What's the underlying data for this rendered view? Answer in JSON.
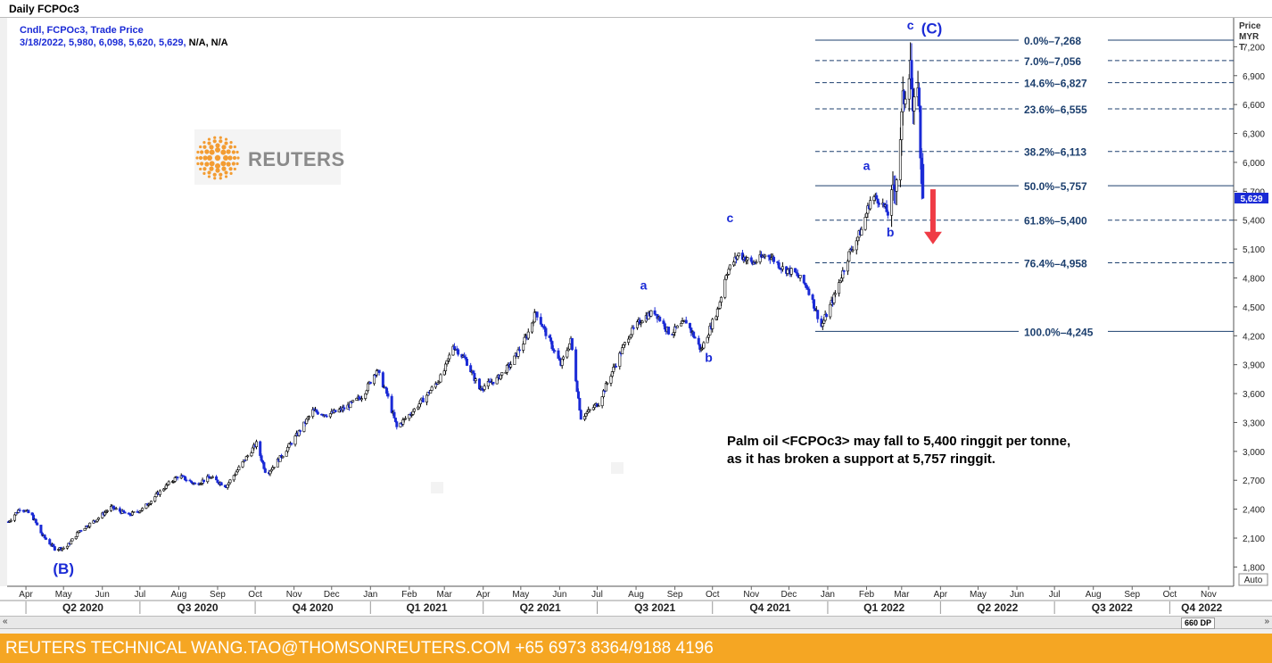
{
  "window_title": "Daily FCPOc3",
  "legend": {
    "line1": "Cndl, FCPOc3, Trade Price",
    "line2_blue": "3/18/2022, 5,980, 6,098, 5,620, 5,629,",
    "line2_black": " N/A, N/A"
  },
  "logo_text": "REUTERS",
  "note": {
    "line1": "Palm oil <FCPOc3> may fall to 5,400 ringgit per tonne,",
    "line2": "as it has broken a support at 5,757 ringgit."
  },
  "footer_text": "REUTERS TECHNICAL  WANG.TAO@THOMSONREUTERS.COM  +65 6973 8364/9188 4196",
  "scroll": {
    "left": "«",
    "right": "»",
    "dp_label": "660 DP"
  },
  "axis": {
    "price_header": [
      "Price",
      "MYR",
      "T"
    ],
    "auto_label": "Auto",
    "last_price_label": "5,629"
  },
  "colors": {
    "up_candle": "#000000",
    "down_candle": "#1b2bd6",
    "wave_label": "#1b2bd6",
    "fib_text": "#1c3f6e",
    "arrow": "#ef3b45",
    "footer": "#f5a623",
    "last_price_box": "#1b2bd6"
  },
  "chart_data": {
    "type": "candlestick",
    "ylabel": "Price MYR T",
    "ylim": [
      1600,
      7500
    ],
    "yticks": [
      "1,800",
      "2,100",
      "2,400",
      "2,700",
      "3,000",
      "3,300",
      "3,600",
      "3,900",
      "4,200",
      "4,500",
      "4,800",
      "5,100",
      "5,400",
      "5,700",
      "6,000",
      "6,300",
      "6,600",
      "6,900",
      "7,200"
    ],
    "ytick_values": [
      1800,
      2100,
      2400,
      2700,
      3000,
      3300,
      3600,
      3900,
      4200,
      4500,
      4800,
      5100,
      5400,
      5700,
      6000,
      6300,
      6600,
      6900,
      7200
    ],
    "xlim": [
      "2020-03-17",
      "2022-11-21"
    ],
    "months": [
      {
        "label": "Apr",
        "date": "2020-04-01"
      },
      {
        "label": "May",
        "date": "2020-05-01"
      },
      {
        "label": "Jun",
        "date": "2020-06-01"
      },
      {
        "label": "Jul",
        "date": "2020-07-01"
      },
      {
        "label": "Aug",
        "date": "2020-08-01"
      },
      {
        "label": "Sep",
        "date": "2020-09-01"
      },
      {
        "label": "Oct",
        "date": "2020-10-01"
      },
      {
        "label": "Nov",
        "date": "2020-11-01"
      },
      {
        "label": "Dec",
        "date": "2020-12-01"
      },
      {
        "label": "Jan",
        "date": "2021-01-01"
      },
      {
        "label": "Feb",
        "date": "2021-02-01"
      },
      {
        "label": "Mar",
        "date": "2021-03-01"
      },
      {
        "label": "Apr",
        "date": "2021-04-01"
      },
      {
        "label": "May",
        "date": "2021-05-01"
      },
      {
        "label": "Jun",
        "date": "2021-06-01"
      },
      {
        "label": "Jul",
        "date": "2021-07-01"
      },
      {
        "label": "Aug",
        "date": "2021-08-01"
      },
      {
        "label": "Sep",
        "date": "2021-09-01"
      },
      {
        "label": "Oct",
        "date": "2021-10-01"
      },
      {
        "label": "Nov",
        "date": "2021-11-01"
      },
      {
        "label": "Dec",
        "date": "2021-12-01"
      },
      {
        "label": "Jan",
        "date": "2022-01-01"
      },
      {
        "label": "Feb",
        "date": "2022-02-01"
      },
      {
        "label": "Mar",
        "date": "2022-03-01"
      },
      {
        "label": "Apr",
        "date": "2022-04-01"
      },
      {
        "label": "May",
        "date": "2022-05-01"
      },
      {
        "label": "Jun",
        "date": "2022-06-01"
      },
      {
        "label": "Jul",
        "date": "2022-07-01"
      },
      {
        "label": "Aug",
        "date": "2022-08-01"
      },
      {
        "label": "Sep",
        "date": "2022-09-01"
      },
      {
        "label": "Oct",
        "date": "2022-10-01"
      },
      {
        "label": "Nov",
        "date": "2022-11-01"
      }
    ],
    "quarters": [
      {
        "label": "Q2 2020",
        "start": "2020-04-01",
        "end": "2020-07-01"
      },
      {
        "label": "Q3 2020",
        "start": "2020-07-01",
        "end": "2020-10-01"
      },
      {
        "label": "Q4 2020",
        "start": "2020-10-01",
        "end": "2021-01-01"
      },
      {
        "label": "Q1 2021",
        "start": "2021-01-01",
        "end": "2021-04-01"
      },
      {
        "label": "Q2 2021",
        "start": "2021-04-01",
        "end": "2021-07-01"
      },
      {
        "label": "Q3 2021",
        "start": "2021-07-01",
        "end": "2021-10-01"
      },
      {
        "label": "Q4 2021",
        "start": "2021-10-01",
        "end": "2022-01-01"
      },
      {
        "label": "Q1 2022",
        "start": "2022-01-01",
        "end": "2022-04-01"
      },
      {
        "label": "Q2 2022",
        "start": "2022-04-01",
        "end": "2022-07-01"
      },
      {
        "label": "Q3 2022",
        "start": "2022-07-01",
        "end": "2022-10-01"
      },
      {
        "label": "Q4 2022",
        "start": "2022-10-01",
        "end": "2022-11-21"
      }
    ],
    "price_path": [
      [
        "2020-03-18",
        2270
      ],
      [
        "2020-03-28",
        2420
      ],
      [
        "2020-04-06",
        2330
      ],
      [
        "2020-04-14",
        2130
      ],
      [
        "2020-04-24",
        1990
      ],
      [
        "2020-05-03",
        2000
      ],
      [
        "2020-05-14",
        2180
      ],
      [
        "2020-05-26",
        2280
      ],
      [
        "2020-06-08",
        2420
      ],
      [
        "2020-06-22",
        2340
      ],
      [
        "2020-07-03",
        2400
      ],
      [
        "2020-07-20",
        2620
      ],
      [
        "2020-08-01",
        2750
      ],
      [
        "2020-08-14",
        2660
      ],
      [
        "2020-08-26",
        2730
      ],
      [
        "2020-09-08",
        2640
      ],
      [
        "2020-09-22",
        2900
      ],
      [
        "2020-10-02",
        3080
      ],
      [
        "2020-10-10",
        2760
      ],
      [
        "2020-10-22",
        2950
      ],
      [
        "2020-11-05",
        3200
      ],
      [
        "2020-11-16",
        3420
      ],
      [
        "2020-11-28",
        3380
      ],
      [
        "2020-12-12",
        3450
      ],
      [
        "2020-12-26",
        3580
      ],
      [
        "2021-01-06",
        3850
      ],
      [
        "2021-01-14",
        3600
      ],
      [
        "2021-01-22",
        3250
      ],
      [
        "2021-02-04",
        3420
      ],
      [
        "2021-02-16",
        3600
      ],
      [
        "2021-02-28",
        3800
      ],
      [
        "2021-03-08",
        4100
      ],
      [
        "2021-03-18",
        3950
      ],
      [
        "2021-03-29",
        3650
      ],
      [
        "2021-04-12",
        3750
      ],
      [
        "2021-04-24",
        3920
      ],
      [
        "2021-05-06",
        4200
      ],
      [
        "2021-05-13",
        4450
      ],
      [
        "2021-05-22",
        4200
      ],
      [
        "2021-06-02",
        3900
      ],
      [
        "2021-06-10",
        4150
      ],
      [
        "2021-06-18",
        3350
      ],
      [
        "2021-07-02",
        3500
      ],
      [
        "2021-07-12",
        3800
      ],
      [
        "2021-07-26",
        4200
      ],
      [
        "2021-08-06",
        4380
      ],
      [
        "2021-08-16",
        4450
      ],
      [
        "2021-08-28",
        4220
      ],
      [
        "2021-09-10",
        4350
      ],
      [
        "2021-09-22",
        4050
      ],
      [
        "2021-10-06",
        4500
      ],
      [
        "2021-10-12",
        4850
      ],
      [
        "2021-10-22",
        5050
      ],
      [
        "2021-11-02",
        4950
      ],
      [
        "2021-11-14",
        5050
      ],
      [
        "2021-11-26",
        4900
      ],
      [
        "2021-12-06",
        4850
      ],
      [
        "2021-12-16",
        4700
      ],
      [
        "2021-12-27",
        4300
      ],
      [
        "2022-01-06",
        4600
      ],
      [
        "2022-01-18",
        5050
      ],
      [
        "2022-01-28",
        5300
      ],
      [
        "2022-02-05",
        5650
      ],
      [
        "2022-02-12",
        5600
      ],
      [
        "2022-02-19",
        5450
      ],
      [
        "2022-02-26",
        5950
      ],
      [
        "2022-03-02",
        6600
      ],
      [
        "2022-03-08",
        7100
      ],
      [
        "2022-03-10",
        6400
      ],
      [
        "2022-03-14",
        6900
      ],
      [
        "2022-03-16",
        6100
      ],
      [
        "2022-03-18",
        5629
      ]
    ],
    "last_candle": {
      "date": "2022-03-18",
      "open": 5980,
      "high": 6098,
      "low": 5620,
      "close": 5629
    },
    "fib_levels": [
      {
        "pct": "0.0%",
        "value": 7268,
        "label": "7,268",
        "style": "solid"
      },
      {
        "pct": "7.0%",
        "value": 7056,
        "label": "7,056",
        "style": "dashed"
      },
      {
        "pct": "14.6%",
        "value": 6827,
        "label": "6,827",
        "style": "dashed"
      },
      {
        "pct": "23.6%",
        "value": 6555,
        "label": "6,555",
        "style": "dashed"
      },
      {
        "pct": "38.2%",
        "value": 6113,
        "label": "6,113",
        "style": "dashed"
      },
      {
        "pct": "50.0%",
        "value": 5757,
        "label": "5,757",
        "style": "solid"
      },
      {
        "pct": "61.8%",
        "value": 5400,
        "label": "5,400",
        "style": "dashed"
      },
      {
        "pct": "76.4%",
        "value": 4958,
        "label": "4,958",
        "style": "dashed"
      },
      {
        "pct": "100.0%",
        "value": 4245,
        "label": "4,245",
        "style": "solid"
      }
    ],
    "fib_start_date": "2021-12-22",
    "wave_labels": [
      {
        "text": "(B)",
        "date": "2020-05-01",
        "value": 1730,
        "big": true
      },
      {
        "text": "a",
        "date": "2021-08-07",
        "value": 4680,
        "big": false
      },
      {
        "text": "b",
        "date": "2021-09-28",
        "value": 3930,
        "big": false
      },
      {
        "text": "c",
        "date": "2021-10-15",
        "value": 5380,
        "big": false
      },
      {
        "text": "a",
        "date": "2022-02-01",
        "value": 5920,
        "big": false
      },
      {
        "text": "b",
        "date": "2022-02-20",
        "value": 5230,
        "big": false
      },
      {
        "text": "c",
        "date": "2022-03-08",
        "value": 7380,
        "big": false
      },
      {
        "text": "(C)",
        "date": "2022-03-25",
        "value": 7340,
        "big": true
      }
    ],
    "arrow": {
      "date": "2022-03-26",
      "from": 5720,
      "to": 5150
    }
  }
}
